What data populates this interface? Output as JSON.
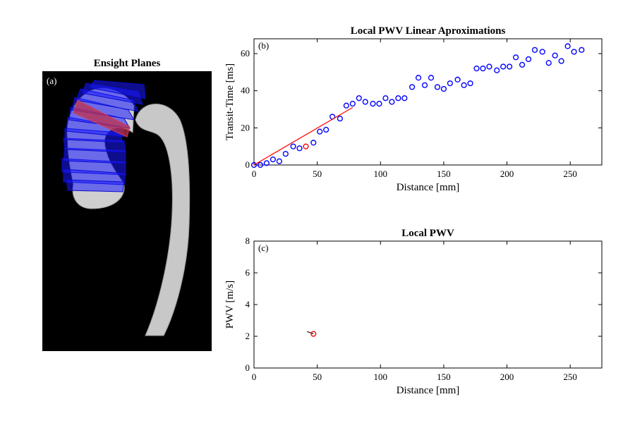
{
  "panel_a": {
    "title": "Ensight Planes",
    "tag": "(a)",
    "colors": {
      "background": "#000000",
      "vessel": "#c8c8c8",
      "plane": "#1a1aff",
      "plane_highlight": "#c0304a"
    }
  },
  "chart_data": [
    {
      "id": "b",
      "type": "scatter",
      "tag": "(b)",
      "title": "Local PWV Linear Aproximations",
      "xlabel": "Distance [mm]",
      "ylabel": "Transit-Time [ms]",
      "xlim": [
        0,
        275
      ],
      "ylim": [
        0,
        68
      ],
      "xticks": [
        0,
        50,
        100,
        150,
        200,
        250
      ],
      "yticks": [
        0,
        20,
        40,
        60
      ],
      "series": [
        {
          "name": "transit-time",
          "marker": "circle",
          "color": "#0000ff",
          "x": [
            0,
            5,
            10,
            15,
            20,
            25,
            31,
            36,
            47,
            52,
            57,
            62,
            68,
            73,
            78,
            83,
            88,
            94,
            99,
            104,
            109,
            114,
            119,
            125,
            130,
            135,
            140,
            145,
            150,
            155,
            161,
            166,
            171,
            176,
            181,
            186,
            192,
            197,
            202,
            207,
            212,
            217,
            222,
            228,
            233,
            238,
            243,
            248,
            253,
            259
          ],
          "y": [
            0,
            0,
            1,
            3,
            2,
            6,
            10,
            9,
            12,
            18,
            19,
            26,
            25,
            32,
            33,
            36,
            34,
            33,
            33,
            36,
            34,
            36,
            36,
            42,
            47,
            43,
            47,
            42,
            41,
            44,
            46,
            43,
            44,
            52,
            52,
            53,
            51,
            53,
            53,
            58,
            54,
            57,
            62,
            61,
            55,
            59,
            56,
            64,
            61,
            62
          ]
        },
        {
          "name": "selected point",
          "marker": "circle",
          "color": "#ff0000",
          "x": [
            41
          ],
          "y": [
            10
          ]
        },
        {
          "name": "linear fit",
          "marker": "line",
          "color": "#ff0000",
          "x": [
            0,
            78
          ],
          "y": [
            0,
            31
          ]
        }
      ]
    },
    {
      "id": "c",
      "type": "scatter",
      "tag": "(c)",
      "title": "Local PWV",
      "xlabel": "Distance [mm]",
      "ylabel": "PWV [m/s]",
      "xlim": [
        0,
        275
      ],
      "ylim": [
        0,
        8
      ],
      "xticks": [
        0,
        50,
        100,
        150,
        200,
        250
      ],
      "yticks": [
        0,
        2,
        4,
        6,
        8
      ],
      "series": [
        {
          "name": "local pwv trace",
          "marker": "line",
          "color": "#000000",
          "x": [
            42,
            47
          ],
          "y": [
            2.3,
            2.15
          ]
        },
        {
          "name": "local pwv point",
          "marker": "circle",
          "color": "#ff0000",
          "x": [
            47
          ],
          "y": [
            2.15
          ]
        }
      ]
    }
  ]
}
